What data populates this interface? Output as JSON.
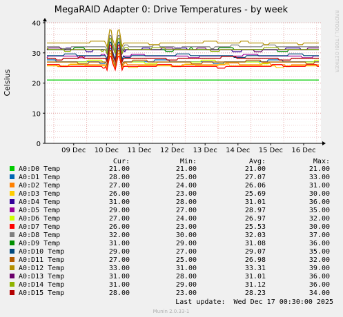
{
  "colors": {
    "background": "#f0f0f0",
    "plot_background": "#ffffff",
    "grid": "#e0a0a0",
    "axis": "#000000",
    "canvas_text": "#000000",
    "watermark": "#c8c8c8"
  },
  "watermark": "RRDTOOL / TOBI OETIKER",
  "footer": {
    "last_update": "Last update:  Wed Dec 17 00:30:00 2025",
    "version": "Munin 2.0.33-1"
  },
  "legend_headers": [
    "Cur:",
    "Min:",
    "Avg:",
    "Max:"
  ],
  "chart_data": {
    "type": "line",
    "title": "MegaRAID Adapter 0: Drive Temperatures - by week",
    "xlabel": "",
    "ylabel": "Celsius",
    "ylim": [
      0,
      40
    ],
    "yticks": [
      0,
      10,
      20,
      30,
      40
    ],
    "x": [
      "09 Dec",
      "10 Dec",
      "11 Dec",
      "12 Dec",
      "13 Dec",
      "14 Dec",
      "15 Dec",
      "16 Dec"
    ],
    "grid": true,
    "legend": "bottom",
    "series": [
      {
        "name": "A0:D0 Temp",
        "color": "#00cc00",
        "cur": "21.00",
        "min": "21.00",
        "avg": "21.00",
        "max": "21.00",
        "base": 21,
        "wobble": 0
      },
      {
        "name": "A0:D1 Temp",
        "color": "#0066b3",
        "cur": "28.00",
        "min": "25.00",
        "avg": "27.07",
        "max": "33.00",
        "base": 27,
        "wobble": 1
      },
      {
        "name": "A0:D2 Temp",
        "color": "#ff8000",
        "cur": "27.00",
        "min": "24.00",
        "avg": "26.06",
        "max": "31.00",
        "base": 26,
        "wobble": 1
      },
      {
        "name": "A0:D3 Temp",
        "color": "#ffcc00",
        "cur": "26.00",
        "min": "23.00",
        "avg": "25.69",
        "max": "30.00",
        "base": 25.7,
        "wobble": 1
      },
      {
        "name": "A0:D4 Temp",
        "color": "#330099",
        "cur": "31.00",
        "min": "28.00",
        "avg": "31.01",
        "max": "36.00",
        "base": 31,
        "wobble": 1
      },
      {
        "name": "A0:D5 Temp",
        "color": "#990099",
        "cur": "29.00",
        "min": "27.00",
        "avg": "28.97",
        "max": "35.00",
        "base": 29,
        "wobble": 1
      },
      {
        "name": "A0:D6 Temp",
        "color": "#ccff00",
        "cur": "27.00",
        "min": "24.00",
        "avg": "26.97",
        "max": "32.00",
        "base": 27,
        "wobble": 1
      },
      {
        "name": "A0:D7 Temp",
        "color": "#ff0000",
        "cur": "26.00",
        "min": "23.00",
        "avg": "25.53",
        "max": "30.00",
        "base": 25.5,
        "wobble": 1
      },
      {
        "name": "A0:D8 Temp",
        "color": "#808080",
        "cur": "32.00",
        "min": "30.00",
        "avg": "32.03",
        "max": "37.00",
        "base": 32,
        "wobble": 1
      },
      {
        "name": "A0:D9 Temp",
        "color": "#008f00",
        "cur": "31.00",
        "min": "29.00",
        "avg": "31.08",
        "max": "36.00",
        "base": 31,
        "wobble": 1
      },
      {
        "name": "A0:D10 Temp",
        "color": "#00487d",
        "cur": "29.00",
        "min": "27.00",
        "avg": "29.07",
        "max": "35.00",
        "base": 29,
        "wobble": 1
      },
      {
        "name": "A0:D11 Temp",
        "color": "#b35a00",
        "cur": "27.00",
        "min": "25.00",
        "avg": "26.98",
        "max": "32.00",
        "base": 27,
        "wobble": 1
      },
      {
        "name": "A0:D12 Temp",
        "color": "#b38f00",
        "cur": "33.00",
        "min": "31.00",
        "avg": "33.31",
        "max": "39.00",
        "base": 33,
        "wobble": 1
      },
      {
        "name": "A0:D13 Temp",
        "color": "#6b006b",
        "cur": "31.00",
        "min": "28.00",
        "avg": "31.01",
        "max": "36.00",
        "base": 31,
        "wobble": 1
      },
      {
        "name": "A0:D14 Temp",
        "color": "#8fb300",
        "cur": "31.00",
        "min": "29.00",
        "avg": "31.12",
        "max": "36.00",
        "base": 31,
        "wobble": 1
      },
      {
        "name": "A0:D15 Temp",
        "color": "#b30000",
        "cur": "28.00",
        "min": "23.00",
        "avg": "28.23",
        "max": "34.00",
        "base": 28,
        "wobble": 1
      }
    ]
  }
}
